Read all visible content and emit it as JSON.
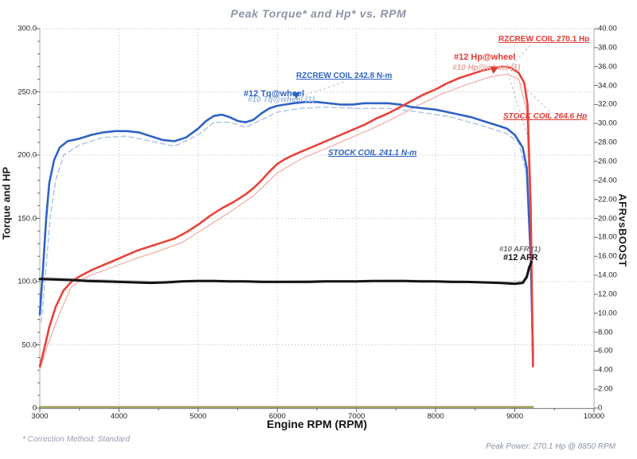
{
  "title": "Peak Torque* and Hp* vs. RPM",
  "footnote": "* Correction Method: Standard",
  "peak_power_note": "Peak Power: 270.1 Hp @ 8850 RPM",
  "colors": {
    "torque": "#2e62c5",
    "hp": "#e8423a",
    "afr": "#141414",
    "boost": "#8f8f3a",
    "ghost_torque": "#a7c2e6",
    "ghost_hp": "#f2b4ae",
    "ghost_afr": "#c6c6c6",
    "title_gray": "#8d94a6",
    "grid": "#cbcbcb"
  },
  "chart_data": {
    "type": "line",
    "title": "Peak Torque* and Hp* vs. RPM",
    "x_axis": {
      "label": "Engine RPM (RPM)",
      "min": 3000,
      "max": 10000,
      "ticks": [
        "3000",
        "4000",
        "5000",
        "6000",
        "7000",
        "8000",
        "9000",
        "10000"
      ]
    },
    "left_axis": {
      "label": "Torque and HP",
      "min": 0,
      "max": 300,
      "ticks": [
        "300.0",
        "250.0",
        "200.0",
        "150.0",
        "100.0",
        "50.0",
        "0"
      ]
    },
    "right_axis": {
      "label": "AFRvsBOOST",
      "min": 0,
      "max": 40,
      "ticks": [
        "40.00",
        "38.00",
        "36.00",
        "34.00",
        "32.00",
        "30.00",
        "28.00",
        "26.00",
        "24.00",
        "22.00",
        "20.00",
        "18.00",
        "16.00",
        "14.00",
        "12.00",
        "10.00",
        "8.00",
        "6.00",
        "4.00",
        "2.00",
        "0"
      ]
    },
    "grid": true,
    "legend": "annotations-on-plot",
    "series": [
      {
        "id": "tq10",
        "name": "#10 Tq@wheel (1)",
        "axis": "left",
        "color": "#a7c2e6",
        "width": 1.4,
        "dash": "6,4",
        "points": [
          [
            3020,
            68
          ],
          [
            3070,
            105
          ],
          [
            3130,
            150
          ],
          [
            3200,
            180
          ],
          [
            3300,
            200
          ],
          [
            3500,
            208
          ],
          [
            3800,
            214
          ],
          [
            4100,
            215
          ],
          [
            4400,
            211
          ],
          [
            4700,
            207
          ],
          [
            5000,
            216
          ],
          [
            5200,
            226
          ],
          [
            5400,
            226
          ],
          [
            5600,
            222
          ],
          [
            5800,
            228
          ],
          [
            6000,
            234
          ],
          [
            6300,
            237
          ],
          [
            6600,
            238
          ],
          [
            7000,
            237
          ],
          [
            7400,
            237
          ],
          [
            7800,
            234
          ],
          [
            8200,
            230
          ],
          [
            8600,
            223
          ],
          [
            8900,
            217
          ],
          [
            9050,
            210
          ],
          [
            9150,
            185
          ],
          [
            9200,
            110
          ],
          [
            9230,
            48
          ]
        ]
      },
      {
        "id": "hp10",
        "name": "#10 Hp@wheel (1)",
        "axis": "left",
        "color": "#f2b4ae",
        "width": 1.4,
        "dash": "",
        "points": [
          [
            3000,
            30
          ],
          [
            3100,
            50
          ],
          [
            3250,
            75
          ],
          [
            3400,
            96
          ],
          [
            3600,
            104
          ],
          [
            3900,
            111
          ],
          [
            4200,
            118
          ],
          [
            4500,
            124
          ],
          [
            4800,
            131
          ],
          [
            5100,
            143
          ],
          [
            5400,
            155
          ],
          [
            5700,
            168
          ],
          [
            6000,
            186
          ],
          [
            6300,
            197
          ],
          [
            6600,
            205
          ],
          [
            6900,
            213
          ],
          [
            7200,
            221
          ],
          [
            7500,
            230
          ],
          [
            7800,
            240
          ],
          [
            8100,
            249
          ],
          [
            8400,
            256
          ],
          [
            8700,
            262
          ],
          [
            8900,
            264
          ],
          [
            9050,
            260
          ],
          [
            9150,
            235
          ],
          [
            9200,
            140
          ],
          [
            9230,
            36
          ]
        ]
      },
      {
        "id": "afr10",
        "name": "#10 AFR (1)",
        "axis": "right",
        "color": "#c6c6c6",
        "width": 1.3,
        "dash": "",
        "points": [
          [
            3000,
            13.8
          ],
          [
            3500,
            13.6
          ],
          [
            4000,
            13.45
          ],
          [
            4500,
            13.35
          ],
          [
            5000,
            13.5
          ],
          [
            5500,
            13.45
          ],
          [
            6000,
            13.4
          ],
          [
            6500,
            13.45
          ],
          [
            7000,
            13.45
          ],
          [
            7500,
            13.5
          ],
          [
            8000,
            13.45
          ],
          [
            8500,
            13.35
          ],
          [
            8900,
            13.3
          ],
          [
            9100,
            13.4
          ],
          [
            9160,
            14.2
          ],
          [
            9210,
            15.6
          ]
        ]
      },
      {
        "id": "boost",
        "name": "Boost",
        "axis": "right",
        "color": "#8f8f3a",
        "width": 2,
        "dash": "",
        "points": [
          [
            3000,
            0.12
          ],
          [
            5000,
            0.12
          ],
          [
            7000,
            0.12
          ],
          [
            9230,
            0.12
          ]
        ]
      },
      {
        "id": "tq12",
        "name": "#12 Tq@wheel",
        "axis": "left",
        "color": "#2e62c5",
        "width": 2.6,
        "dash": "",
        "points": [
          [
            3000,
            74
          ],
          [
            3040,
            110
          ],
          [
            3080,
            150
          ],
          [
            3120,
            178
          ],
          [
            3180,
            196
          ],
          [
            3250,
            206
          ],
          [
            3350,
            211
          ],
          [
            3500,
            213
          ],
          [
            3650,
            216
          ],
          [
            3800,
            218
          ],
          [
            3950,
            219
          ],
          [
            4100,
            219
          ],
          [
            4250,
            218
          ],
          [
            4400,
            215
          ],
          [
            4550,
            212
          ],
          [
            4700,
            211
          ],
          [
            4850,
            214
          ],
          [
            5000,
            221
          ],
          [
            5100,
            227
          ],
          [
            5200,
            231
          ],
          [
            5300,
            232
          ],
          [
            5400,
            230
          ],
          [
            5500,
            227
          ],
          [
            5600,
            226
          ],
          [
            5700,
            228
          ],
          [
            5800,
            233
          ],
          [
            5900,
            237
          ],
          [
            6000,
            239
          ],
          [
            6100,
            240
          ],
          [
            6200,
            241
          ],
          [
            6350,
            242
          ],
          [
            6500,
            242
          ],
          [
            6650,
            241
          ],
          [
            6800,
            240
          ],
          [
            6950,
            240
          ],
          [
            7100,
            241
          ],
          [
            7250,
            241
          ],
          [
            7400,
            241
          ],
          [
            7550,
            240
          ],
          [
            7700,
            238
          ],
          [
            7850,
            237
          ],
          [
            8000,
            236
          ],
          [
            8150,
            234
          ],
          [
            8300,
            232
          ],
          [
            8450,
            230
          ],
          [
            8600,
            227
          ],
          [
            8750,
            224
          ],
          [
            8900,
            221
          ],
          [
            9000,
            216
          ],
          [
            9100,
            206
          ],
          [
            9150,
            190
          ],
          [
            9200,
            120
          ],
          [
            9230,
            40
          ]
        ]
      },
      {
        "id": "hp12",
        "name": "#12 Hp@wheel",
        "axis": "left",
        "color": "#e8423a",
        "width": 2.6,
        "dash": "",
        "points": [
          [
            3000,
            33
          ],
          [
            3060,
            48
          ],
          [
            3120,
            64
          ],
          [
            3200,
            80
          ],
          [
            3300,
            93
          ],
          [
            3400,
            100
          ],
          [
            3500,
            104
          ],
          [
            3650,
            109
          ],
          [
            3800,
            113
          ],
          [
            3950,
            117
          ],
          [
            4100,
            121
          ],
          [
            4250,
            125
          ],
          [
            4400,
            128
          ],
          [
            4550,
            131
          ],
          [
            4700,
            134
          ],
          [
            4850,
            139
          ],
          [
            5000,
            145
          ],
          [
            5150,
            152
          ],
          [
            5300,
            158
          ],
          [
            5450,
            163
          ],
          [
            5600,
            169
          ],
          [
            5700,
            174
          ],
          [
            5800,
            180
          ],
          [
            5900,
            187
          ],
          [
            6000,
            193
          ],
          [
            6100,
            197
          ],
          [
            6200,
            200
          ],
          [
            6350,
            204
          ],
          [
            6500,
            208
          ],
          [
            6650,
            212
          ],
          [
            6800,
            216
          ],
          [
            6950,
            220
          ],
          [
            7100,
            224
          ],
          [
            7250,
            229
          ],
          [
            7400,
            233
          ],
          [
            7550,
            238
          ],
          [
            7700,
            243
          ],
          [
            7850,
            248
          ],
          [
            8000,
            252
          ],
          [
            8150,
            257
          ],
          [
            8300,
            261
          ],
          [
            8450,
            264
          ],
          [
            8600,
            267
          ],
          [
            8750,
            269
          ],
          [
            8850,
            270.1
          ],
          [
            8950,
            269
          ],
          [
            9050,
            265
          ],
          [
            9120,
            257
          ],
          [
            9160,
            240
          ],
          [
            9200,
            160
          ],
          [
            9230,
            33
          ]
        ]
      },
      {
        "id": "afr12",
        "name": "#12 AFR",
        "axis": "right",
        "color": "#141414",
        "width": 3,
        "dash": "",
        "points": [
          [
            3000,
            13.6
          ],
          [
            3200,
            13.55
          ],
          [
            3400,
            13.5
          ],
          [
            3600,
            13.4
          ],
          [
            3800,
            13.35
          ],
          [
            4000,
            13.3
          ],
          [
            4200,
            13.25
          ],
          [
            4400,
            13.2
          ],
          [
            4600,
            13.25
          ],
          [
            4800,
            13.35
          ],
          [
            5000,
            13.4
          ],
          [
            5200,
            13.4
          ],
          [
            5400,
            13.35
          ],
          [
            5600,
            13.35
          ],
          [
            5800,
            13.3
          ],
          [
            6000,
            13.3
          ],
          [
            6200,
            13.3
          ],
          [
            6400,
            13.3
          ],
          [
            6600,
            13.35
          ],
          [
            6800,
            13.35
          ],
          [
            7000,
            13.35
          ],
          [
            7200,
            13.4
          ],
          [
            7400,
            13.4
          ],
          [
            7600,
            13.4
          ],
          [
            7800,
            13.35
          ],
          [
            8000,
            13.35
          ],
          [
            8200,
            13.3
          ],
          [
            8400,
            13.3
          ],
          [
            8600,
            13.25
          ],
          [
            8800,
            13.2
          ],
          [
            9000,
            13.1
          ],
          [
            9100,
            13.2
          ],
          [
            9150,
            13.8
          ],
          [
            9180,
            14.8
          ],
          [
            9210,
            15.4
          ]
        ]
      }
    ],
    "annotations": [
      {
        "id": "rzcrew-hp",
        "text": "RZCREW COIL 270.1 Hp"
      },
      {
        "id": "hp12-label",
        "text": "#12 Hp@wheel"
      },
      {
        "id": "hp10-label",
        "text": "#10 Hp@wheel (1)"
      },
      {
        "id": "rzcrew-tq",
        "text": "RZCREW COIL 242.8 N-m"
      },
      {
        "id": "tq12-label",
        "text": "#12 Tq@wheel"
      },
      {
        "id": "tq10-label",
        "text": "#10 Tq@wheel (1)"
      },
      {
        "id": "stock-tq",
        "text": "STOCK COIL 241.1 N-m"
      },
      {
        "id": "stock-hp",
        "text": "STOCK COIL 264.6 Hp"
      },
      {
        "id": "afr10-label",
        "text": "#10 AFR (1)"
      },
      {
        "id": "afr12-label",
        "text": "#12 AFR"
      }
    ]
  }
}
